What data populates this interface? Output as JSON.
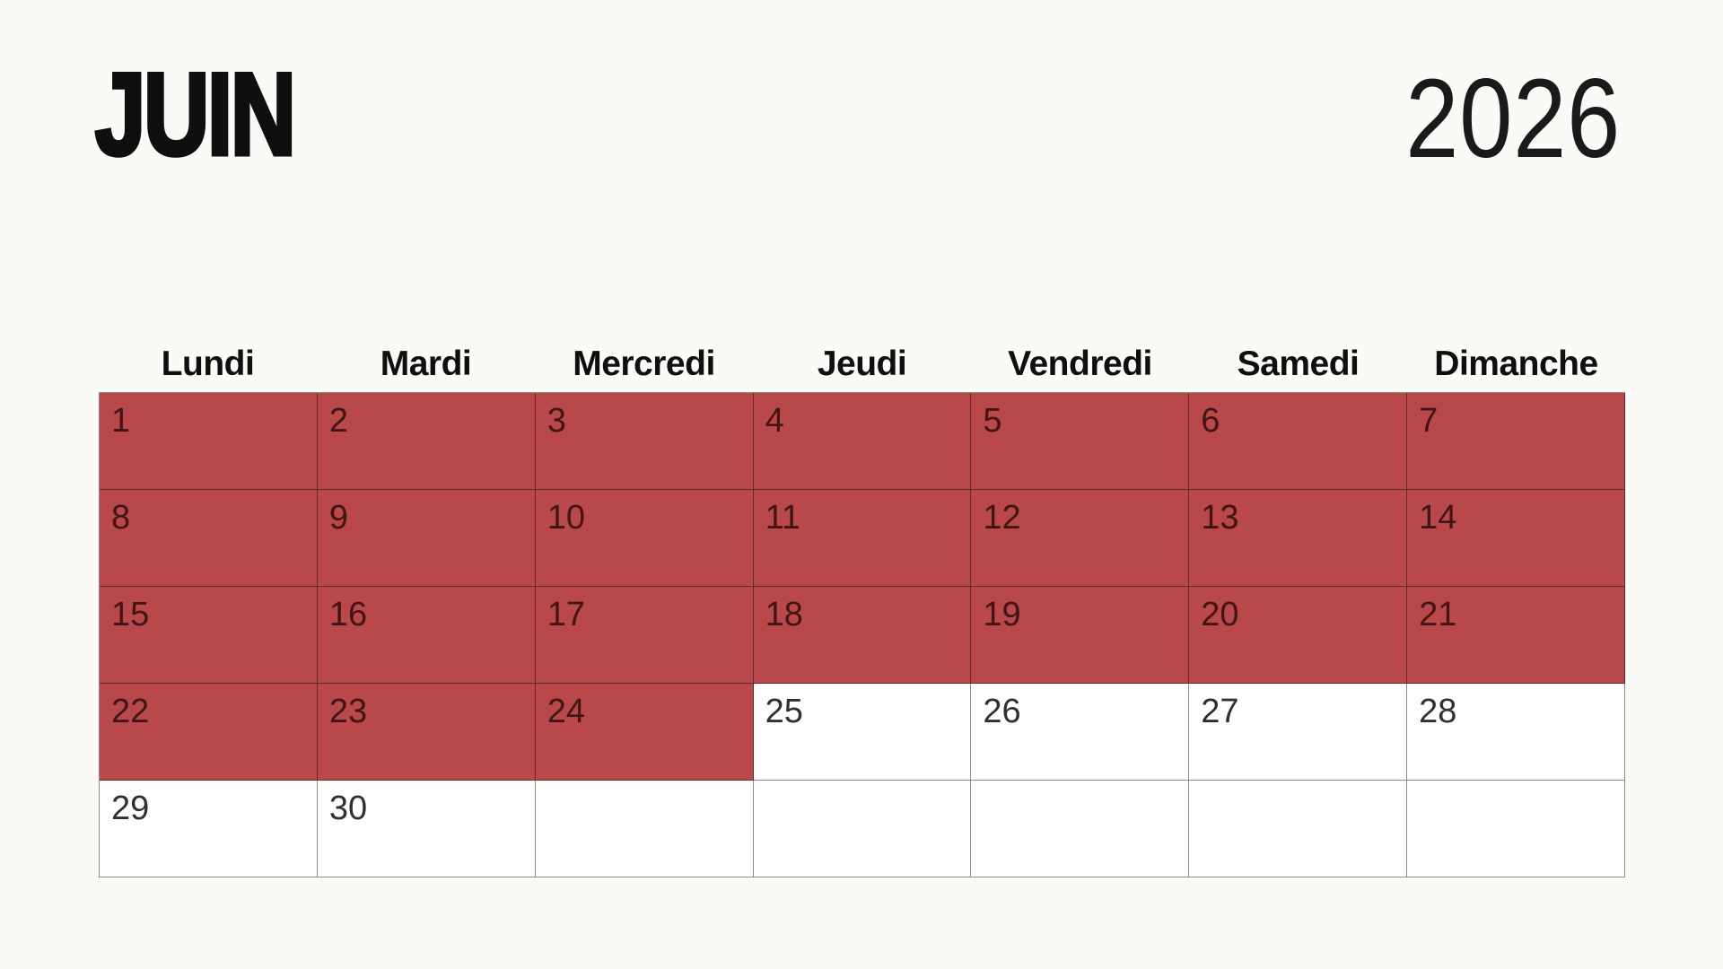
{
  "header": {
    "month": "JUIN",
    "year": "2026"
  },
  "colors": {
    "highlight": "#b9484b",
    "highlight_text": "#421416",
    "day_text": "#303030",
    "heading_text": "#0f0f0f",
    "year_text": "#1a1a1a",
    "grid_line": "rgba(0,0,0,0.45)",
    "page_background": "#fbfaf7",
    "cell_background": "#fdfdfb"
  },
  "calendar": {
    "weekdays": [
      "Lundi",
      "Mardi",
      "Mercredi",
      "Jeudi",
      "Vendredi",
      "Samedi",
      "Dimanche"
    ],
    "cells": [
      {
        "day": "1",
        "highlighted": true
      },
      {
        "day": "2",
        "highlighted": true
      },
      {
        "day": "3",
        "highlighted": true
      },
      {
        "day": "4",
        "highlighted": true
      },
      {
        "day": "5",
        "highlighted": true
      },
      {
        "day": "6",
        "highlighted": true
      },
      {
        "day": "7",
        "highlighted": true
      },
      {
        "day": "8",
        "highlighted": true
      },
      {
        "day": "9",
        "highlighted": true
      },
      {
        "day": "10",
        "highlighted": true
      },
      {
        "day": "11",
        "highlighted": true
      },
      {
        "day": "12",
        "highlighted": true
      },
      {
        "day": "13",
        "highlighted": true
      },
      {
        "day": "14",
        "highlighted": true
      },
      {
        "day": "15",
        "highlighted": true
      },
      {
        "day": "16",
        "highlighted": true
      },
      {
        "day": "17",
        "highlighted": true
      },
      {
        "day": "18",
        "highlighted": true
      },
      {
        "day": "19",
        "highlighted": true
      },
      {
        "day": "20",
        "highlighted": true
      },
      {
        "day": "21",
        "highlighted": true
      },
      {
        "day": "22",
        "highlighted": true
      },
      {
        "day": "23",
        "highlighted": true
      },
      {
        "day": "24",
        "highlighted": true
      },
      {
        "day": "25",
        "highlighted": false
      },
      {
        "day": "26",
        "highlighted": false
      },
      {
        "day": "27",
        "highlighted": false
      },
      {
        "day": "28",
        "highlighted": false
      },
      {
        "day": "29",
        "highlighted": false
      },
      {
        "day": "30",
        "highlighted": false
      },
      {
        "day": "",
        "highlighted": false
      },
      {
        "day": "",
        "highlighted": false
      },
      {
        "day": "",
        "highlighted": false
      },
      {
        "day": "",
        "highlighted": false
      },
      {
        "day": "",
        "highlighted": false
      }
    ]
  }
}
